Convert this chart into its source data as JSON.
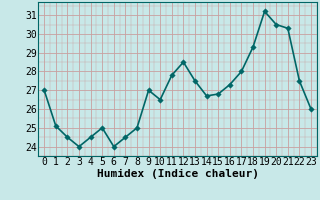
{
  "x": [
    0,
    1,
    2,
    3,
    4,
    5,
    6,
    7,
    8,
    9,
    10,
    11,
    12,
    13,
    14,
    15,
    16,
    17,
    18,
    19,
    20,
    21,
    22,
    23
  ],
  "y": [
    27.0,
    25.1,
    24.5,
    24.0,
    24.5,
    25.0,
    24.0,
    24.5,
    25.0,
    27.0,
    26.5,
    27.8,
    28.5,
    27.5,
    26.7,
    26.8,
    27.3,
    28.0,
    29.3,
    31.2,
    30.5,
    30.3,
    27.5,
    26.0
  ],
  "line_color": "#006666",
  "marker_color": "#006666",
  "bg_color": "#c8e8e8",
  "grid_color": "#c8a0a0",
  "xlabel": "Humidex (Indice chaleur)",
  "ylim": [
    23.5,
    31.7
  ],
  "xlim": [
    -0.5,
    23.5
  ],
  "yticks": [
    24,
    25,
    26,
    27,
    28,
    29,
    30,
    31
  ],
  "xticks": [
    0,
    1,
    2,
    3,
    4,
    5,
    6,
    7,
    8,
    9,
    10,
    11,
    12,
    13,
    14,
    15,
    16,
    17,
    18,
    19,
    20,
    21,
    22,
    23
  ],
  "xlabel_fontsize": 8,
  "tick_fontsize": 7,
  "line_width": 1.2,
  "marker_size": 2.8
}
